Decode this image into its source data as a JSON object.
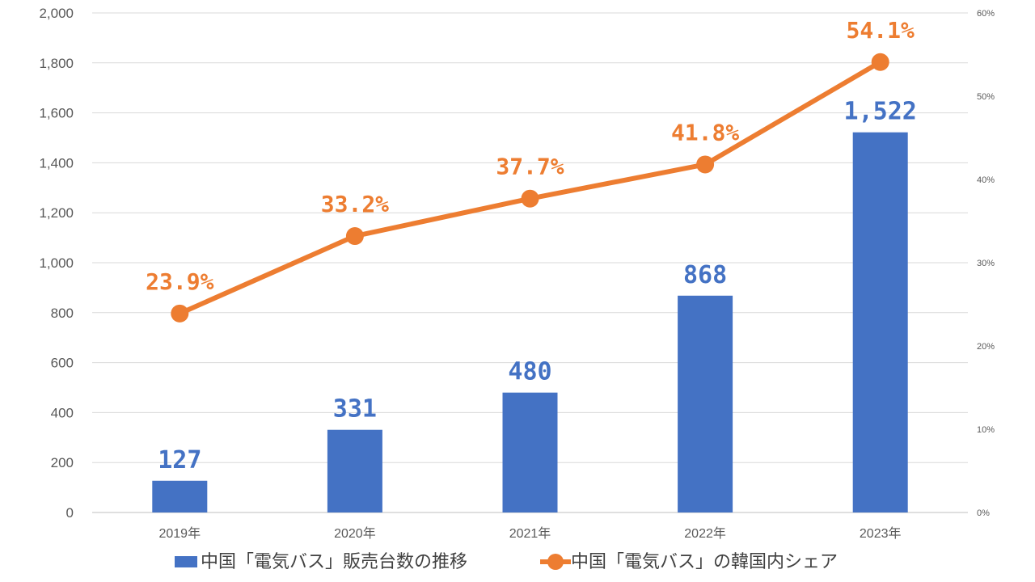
{
  "chart_data": {
    "type": "bar+line",
    "categories": [
      "2019年",
      "2020年",
      "2021年",
      "2022年",
      "2023年"
    ],
    "series": [
      {
        "name": "中国「電気バス」販売台数の推移",
        "type": "bar",
        "axis": "left",
        "color": "#4472C4",
        "values": [
          127,
          331,
          480,
          868,
          1522
        ],
        "labels": [
          "127",
          "331",
          "480",
          "868",
          "1,522"
        ]
      },
      {
        "name": "中国「電気バス」の韓国内シェア",
        "type": "line",
        "axis": "right",
        "color": "#ED7D31",
        "values": [
          23.9,
          33.2,
          37.7,
          41.8,
          54.1
        ],
        "labels": [
          "23.9%",
          "33.2%",
          "37.7%",
          "41.8%",
          "54.1%"
        ]
      }
    ],
    "y_left": {
      "ylim": [
        0,
        2000
      ],
      "ticks": [
        0,
        200,
        400,
        600,
        800,
        1000,
        1200,
        1400,
        1600,
        1800,
        2000
      ],
      "tick_labels": [
        "0",
        "200",
        "400",
        "600",
        "800",
        "1,000",
        "1,200",
        "1,400",
        "1,600",
        "1,800",
        "2,000"
      ]
    },
    "y_right": {
      "ylim": [
        0,
        60
      ],
      "ticks": [
        0,
        10,
        20,
        30,
        40,
        50,
        60
      ],
      "tick_labels": [
        "0%",
        "10%",
        "20%",
        "30%",
        "40%",
        "50%",
        "60%"
      ]
    },
    "grid": true,
    "legend_position": "bottom"
  }
}
